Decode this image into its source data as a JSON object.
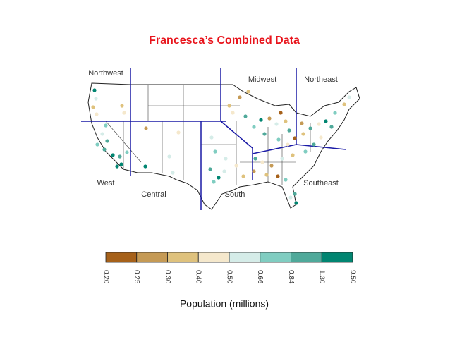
{
  "title": "Francesca’s Combined Data",
  "regions": [
    "Northwest",
    "Midwest",
    "Northeast",
    "West",
    "Central",
    "South",
    "Southeast"
  ],
  "legend": {
    "colors": [
      "#a6611a",
      "#c59a55",
      "#dfc27d",
      "#f5e8cc",
      "#d5ece8",
      "#80cdc1",
      "#4fa99a",
      "#018571"
    ],
    "breaks": [
      "0.20",
      "0.25",
      "0.30",
      "0.40",
      "0.50",
      "0.66",
      "0.84",
      "1.30",
      "9.50"
    ],
    "label": "Population (millions)"
  }
}
